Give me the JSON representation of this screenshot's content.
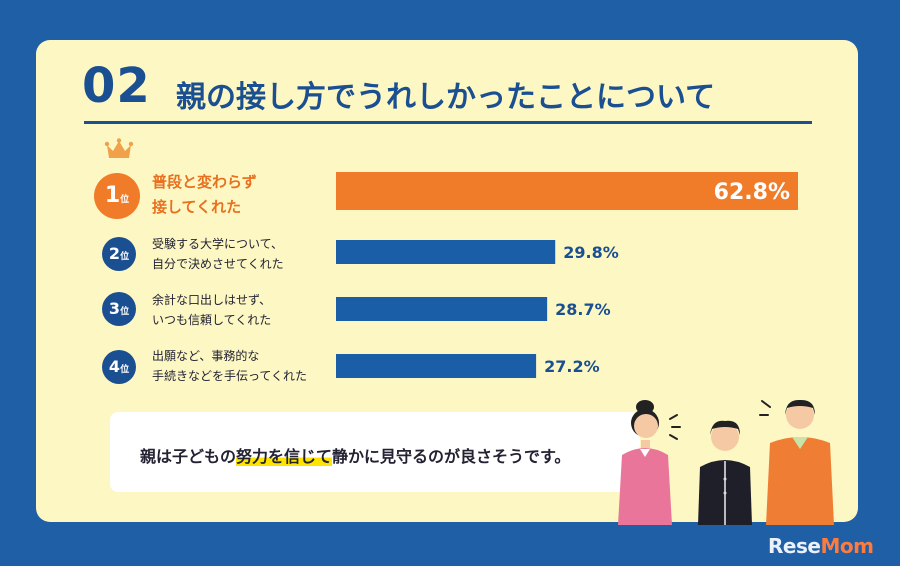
{
  "header": {
    "number": "02",
    "title": "親の接し方でうれしかったことについて"
  },
  "ranks": [
    {
      "rank": "1",
      "suffix": "位",
      "line1": "普段と変わらず",
      "line2": "接してくれた"
    },
    {
      "rank": "2",
      "suffix": "位",
      "line1": "受験する大学について、",
      "line2": "自分で決めさせてくれた"
    },
    {
      "rank": "3",
      "suffix": "位",
      "line1": "余計な口出しはせず、",
      "line2": "いつも信頼してくれた"
    },
    {
      "rank": "4",
      "suffix": "位",
      "line1": "出願など、事務的な",
      "line2": "手続きなどを手伝ってくれた"
    }
  ],
  "chart_data": {
    "type": "bar",
    "orientation": "horizontal",
    "categories": [
      "普段と変わらず接してくれた",
      "受験する大学について、自分で決めさせてくれた",
      "余計な口出しはせず、いつも信頼してくれた",
      "出願など、事務的な手続きなどを手伝ってくれた"
    ],
    "values": [
      62.8,
      29.8,
      28.7,
      27.2
    ],
    "value_labels": [
      "62.8%",
      "29.8%",
      "28.7%",
      "27.2%"
    ],
    "colors": [
      "#f07c2a",
      "#1a5ea8",
      "#1a5ea8",
      "#1a5ea8"
    ],
    "xlim": [
      0,
      62.8
    ]
  },
  "note": {
    "before": "親は子どもの",
    "highlight": "努力を信じて",
    "after": "静かに見守るのが良さそうです。"
  },
  "logo": {
    "part1": "Rese",
    "part2": "Mom"
  },
  "colors": {
    "background": "#1f5fa6",
    "card": "#fdf7c3",
    "navy": "#1a4f91",
    "orange": "#f07c2a",
    "highlight": "#ffe400"
  }
}
